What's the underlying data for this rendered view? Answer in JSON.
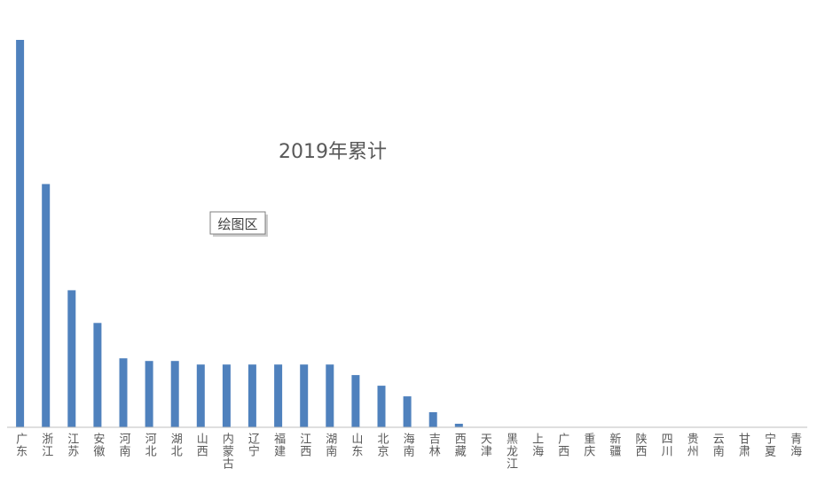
{
  "chart_data": {
    "type": "bar",
    "title": "2019年累计",
    "tooltip": "绘图区",
    "categories": [
      "广东",
      "浙江",
      "江苏",
      "安徽",
      "河南",
      "河北",
      "湖北",
      "山西",
      "内蒙古",
      "辽宁",
      "福建",
      "江西",
      "湖南",
      "山东",
      "北京",
      "海南",
      "吉林",
      "西藏",
      "天津",
      "黑龙江",
      "上海",
      "广西",
      "重庆",
      "新疆",
      "陕西",
      "四川",
      "贵州",
      "云南",
      "甘肃",
      "宁夏",
      "青海"
    ],
    "values": [
      438,
      275,
      155,
      118,
      78,
      75,
      75,
      71,
      71,
      71,
      71,
      71,
      71,
      59,
      47,
      35,
      17,
      4,
      0,
      0,
      0,
      0,
      0,
      0,
      0,
      0,
      0,
      0,
      0,
      0,
      0
    ],
    "ylim": [
      0,
      440
    ],
    "bar_color": "#4f81bd",
    "axis_color": "#bfbfbf",
    "title_color": "#595959",
    "label_color": "#595959",
    "grid": false,
    "legend": "none"
  }
}
